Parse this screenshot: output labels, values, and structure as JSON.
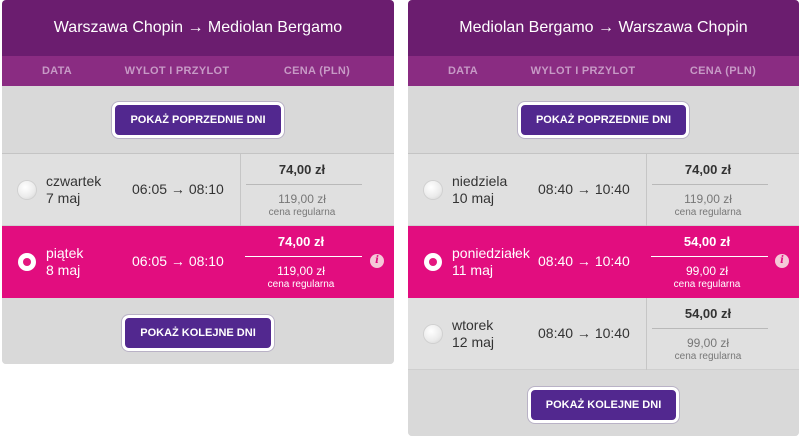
{
  "panels": [
    {
      "route": "Warszawa Chopin → Mediolan Bergamo",
      "columns": [
        "DATA",
        "WYLOT I PRZYLOT",
        "CENA (PLN)"
      ],
      "prev_button": "POKAŻ POPRZEDNIE DNI",
      "next_button": "POKAŻ KOLEJNE DNI",
      "rows": [
        {
          "day": "czwartek",
          "date": "7 maj",
          "times": "06:05 → 08:10",
          "price": "74,00 zł",
          "regular_price": "119,00 zł",
          "regular_label": "cena regularna",
          "selected": false
        },
        {
          "day": "piątek",
          "date": "8 maj",
          "times": "06:05 → 08:10",
          "price": "74,00 zł",
          "regular_price": "119,00 zł",
          "regular_label": "cena regularna",
          "selected": true
        }
      ]
    },
    {
      "route": "Mediolan Bergamo → Warszawa Chopin",
      "columns": [
        "DATA",
        "WYLOT I PRZYLOT",
        "CENA (PLN)"
      ],
      "prev_button": "POKAŻ POPRZEDNIE DNI",
      "next_button": "POKAŻ KOLEJNE DNI",
      "rows": [
        {
          "day": "niedziela",
          "date": "10 maj",
          "times": "08:40 → 10:40",
          "price": "74,00 zł",
          "regular_price": "119,00 zł",
          "regular_label": "cena regularna",
          "selected": false
        },
        {
          "day": "poniedziałek",
          "date": "11 maj",
          "times": "08:40 → 10:40",
          "price": "54,00 zł",
          "regular_price": "99,00 zł",
          "regular_label": "cena regularna",
          "selected": true
        },
        {
          "day": "wtorek",
          "date": "12 maj",
          "times": "08:40 → 10:40",
          "price": "54,00 zł",
          "regular_price": "99,00 zł",
          "regular_label": "cena regularna",
          "selected": false
        }
      ]
    }
  ],
  "info_icon": "info-icon",
  "colors": {
    "header": "#6b1d6f",
    "column_header": "#8a2c82",
    "selected_row": "#e20d7f",
    "button": "#52288f",
    "panel_bg": "#d9d9d9"
  }
}
